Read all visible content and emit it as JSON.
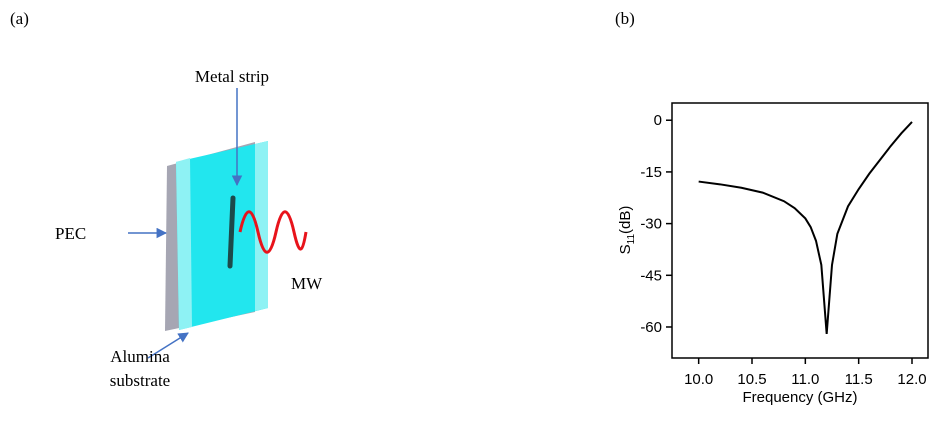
{
  "panels": {
    "a": "(a)",
    "b": "(b)"
  },
  "diagram": {
    "metal_strip": "Metal strip",
    "pec": "PEC",
    "mw": "MW",
    "alumina": [
      "Alumina",
      "substrate"
    ]
  },
  "chart_data": {
    "type": "line",
    "xlabel": "Frequency (GHz)",
    "ylabel": {
      "main": "S",
      "sub": "11",
      "rest": "(dB)"
    },
    "x": [
      10.0,
      10.2,
      10.4,
      10.6,
      10.8,
      10.9,
      11.0,
      11.05,
      11.1,
      11.15,
      11.2,
      11.25,
      11.3,
      11.4,
      11.5,
      11.6,
      11.7,
      11.8,
      11.9,
      12.0
    ],
    "series": [
      {
        "color": "#000000",
        "values": [
          -17.8,
          -18.6,
          -19.6,
          -21,
          -23.5,
          -25.5,
          -28.5,
          -31,
          -35,
          -42,
          -62,
          -42,
          -33,
          -25,
          -20,
          -15.5,
          -11.5,
          -7.5,
          -3.8,
          -0.5
        ]
      }
    ],
    "xlim": [
      9.75,
      12.15
    ],
    "ylim": [
      -69,
      5
    ],
    "xticks": [
      {
        "value": 10,
        "label": "10.0"
      },
      {
        "value": 10.5,
        "label": "10.5"
      },
      {
        "value": 11,
        "label": "11.0"
      },
      {
        "value": 11.5,
        "label": "11.5"
      },
      {
        "value": 12,
        "label": "12.0"
      }
    ],
    "yticks": [
      0,
      -15,
      -30,
      -45,
      -60
    ]
  }
}
